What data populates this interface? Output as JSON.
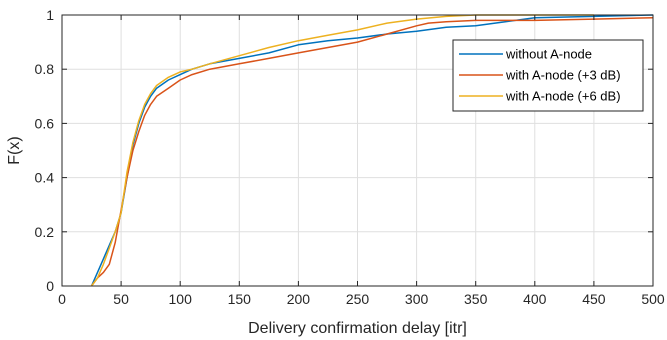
{
  "chart_data": {
    "type": "line",
    "title": "",
    "xlabel": "Delivery confirmation delay [itr]",
    "ylabel": "F(x)",
    "xlim": [
      0,
      500
    ],
    "ylim": [
      0,
      1
    ],
    "xticks": [
      0,
      50,
      100,
      150,
      200,
      250,
      300,
      350,
      400,
      450,
      500
    ],
    "yticks": [
      0,
      0.2,
      0.4,
      0.6,
      0.8,
      1
    ],
    "xtick_labels": [
      "0",
      "50",
      "100",
      "150",
      "200",
      "250",
      "300",
      "350",
      "400",
      "450",
      "500"
    ],
    "ytick_labels": [
      "0",
      "0.2",
      "0.4",
      "0.6",
      "0.8",
      "1"
    ],
    "grid": true,
    "legend_position": "top-right",
    "series": [
      {
        "name": "without A-node",
        "color": "#0072BD",
        "x": [
          25,
          30,
          35,
          40,
          45,
          50,
          55,
          60,
          65,
          70,
          75,
          80,
          90,
          100,
          110,
          125,
          150,
          175,
          200,
          225,
          250,
          275,
          300,
          325,
          350,
          375,
          400,
          450,
          500
        ],
        "y": [
          0,
          0.05,
          0.1,
          0.15,
          0.2,
          0.27,
          0.4,
          0.52,
          0.6,
          0.66,
          0.7,
          0.73,
          0.76,
          0.78,
          0.8,
          0.82,
          0.84,
          0.86,
          0.89,
          0.905,
          0.915,
          0.93,
          0.94,
          0.955,
          0.96,
          0.975,
          0.99,
          0.995,
          1.0
        ]
      },
      {
        "name": "with A-node (+3 dB)",
        "color": "#D95319",
        "x": [
          25,
          30,
          35,
          40,
          45,
          50,
          55,
          60,
          65,
          70,
          75,
          80,
          90,
          100,
          110,
          125,
          150,
          175,
          200,
          225,
          250,
          275,
          300,
          310,
          325,
          350,
          375,
          400,
          450,
          500
        ],
        "y": [
          0,
          0.03,
          0.05,
          0.08,
          0.16,
          0.28,
          0.4,
          0.5,
          0.57,
          0.63,
          0.67,
          0.7,
          0.73,
          0.76,
          0.78,
          0.8,
          0.82,
          0.84,
          0.86,
          0.88,
          0.9,
          0.93,
          0.96,
          0.97,
          0.975,
          0.98,
          0.98,
          0.98,
          0.985,
          0.99
        ]
      },
      {
        "name": "with A-node (+6 dB)",
        "color": "#EDB120",
        "x": [
          25,
          30,
          35,
          40,
          45,
          50,
          55,
          60,
          65,
          70,
          75,
          80,
          90,
          100,
          110,
          125,
          150,
          175,
          200,
          225,
          250,
          275,
          300,
          325,
          350,
          400,
          450
        ],
        "y": [
          0,
          0.03,
          0.08,
          0.14,
          0.2,
          0.27,
          0.42,
          0.53,
          0.61,
          0.67,
          0.71,
          0.74,
          0.77,
          0.79,
          0.8,
          0.82,
          0.85,
          0.88,
          0.905,
          0.925,
          0.945,
          0.97,
          0.985,
          0.995,
          1.0,
          1.0,
          1.0
        ]
      }
    ]
  }
}
